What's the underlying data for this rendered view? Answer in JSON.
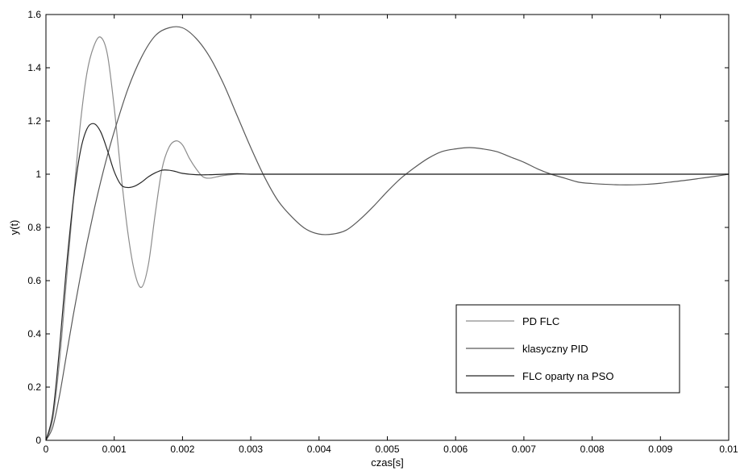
{
  "chart_data": {
    "type": "line",
    "title": "",
    "xlabel": "czas[s]",
    "ylabel": "y(t)",
    "xlim": [
      0,
      0.01
    ],
    "ylim": [
      0,
      1.6
    ],
    "xticks": [
      0,
      0.001,
      0.002,
      0.003,
      0.004,
      0.005,
      0.006,
      0.007,
      0.008,
      0.009,
      0.01
    ],
    "xtick_labels": [
      "0",
      "0.001",
      "0.002",
      "0.003",
      "0.004",
      "0.005",
      "0.006",
      "0.007",
      "0.008",
      "0.009",
      "0.01"
    ],
    "yticks": [
      0,
      0.2,
      0.4,
      0.6,
      0.8,
      1,
      1.2,
      1.4,
      1.6
    ],
    "ytick_labels": [
      "0",
      "0.2",
      "0.4",
      "0.6",
      "0.8",
      "1",
      "1.2",
      "1.4",
      "1.6"
    ],
    "grid": false,
    "legend_position": "lower-right",
    "series": [
      {
        "name": "PD FLC",
        "color": "#8c8c8c",
        "x": [
          0,
          0.0001,
          0.0002,
          0.0003,
          0.0004,
          0.0005,
          0.0006,
          0.0007,
          0.0008,
          0.0009,
          0.001,
          0.0011,
          0.0012,
          0.0013,
          0.0014,
          0.0015,
          0.0016,
          0.0017,
          0.0018,
          0.0019,
          0.002,
          0.0021,
          0.0022,
          0.0023,
          0.0024,
          0.0025,
          0.0026,
          0.0028,
          0.003,
          0.0035,
          0.004,
          0.005,
          0.006,
          0.007,
          0.008,
          0.009,
          0.01
        ],
        "y": [
          0,
          0.08,
          0.3,
          0.6,
          0.9,
          1.18,
          1.38,
          1.48,
          1.515,
          1.45,
          1.25,
          1.0,
          0.78,
          0.63,
          0.575,
          0.66,
          0.85,
          1.02,
          1.1,
          1.125,
          1.11,
          1.06,
          1.02,
          0.99,
          0.985,
          0.99,
          0.995,
          1.0,
          1.0,
          1.0,
          1.0,
          1.0,
          1.0,
          1.0,
          1.0,
          1.0,
          1.0
        ]
      },
      {
        "name": "klasyczny PID",
        "color": "#595959",
        "x": [
          0,
          0.0001,
          0.0002,
          0.0003,
          0.0004,
          0.0005,
          0.0006,
          0.0007,
          0.0008,
          0.0009,
          0.001,
          0.0012,
          0.0014,
          0.0016,
          0.0018,
          0.002,
          0.0022,
          0.0024,
          0.0026,
          0.0028,
          0.003,
          0.0032,
          0.0034,
          0.0036,
          0.0038,
          0.004,
          0.0042,
          0.0044,
          0.0046,
          0.0048,
          0.005,
          0.0052,
          0.0054,
          0.0056,
          0.0058,
          0.006,
          0.0062,
          0.0064,
          0.0066,
          0.0068,
          0.007,
          0.0072,
          0.0074,
          0.0076,
          0.0078,
          0.008,
          0.0082,
          0.0084,
          0.0086,
          0.0088,
          0.009,
          0.0092,
          0.0094,
          0.0096,
          0.0098,
          0.01
        ],
        "y": [
          0,
          0.05,
          0.17,
          0.32,
          0.47,
          0.61,
          0.74,
          0.86,
          0.97,
          1.07,
          1.16,
          1.32,
          1.44,
          1.52,
          1.55,
          1.55,
          1.51,
          1.44,
          1.34,
          1.22,
          1.1,
          0.99,
          0.9,
          0.84,
          0.795,
          0.775,
          0.775,
          0.79,
          0.83,
          0.88,
          0.935,
          0.985,
          1.025,
          1.06,
          1.085,
          1.095,
          1.1,
          1.095,
          1.085,
          1.065,
          1.045,
          1.02,
          1.0,
          0.985,
          0.97,
          0.965,
          0.962,
          0.96,
          0.96,
          0.962,
          0.966,
          0.972,
          0.978,
          0.985,
          0.992,
          1.0
        ]
      },
      {
        "name": "FLC oparty na PSO",
        "color": "#262626",
        "x": [
          0,
          0.0001,
          0.0002,
          0.0003,
          0.0004,
          0.0005,
          0.0006,
          0.0007,
          0.0008,
          0.0009,
          0.001,
          0.0011,
          0.0012,
          0.0013,
          0.0014,
          0.0015,
          0.0016,
          0.0017,
          0.0018,
          0.0019,
          0.002,
          0.0022,
          0.0024,
          0.0026,
          0.0028,
          0.003,
          0.0035,
          0.004,
          0.005,
          0.006,
          0.007,
          0.008,
          0.009,
          0.01
        ],
        "y": [
          0,
          0.1,
          0.35,
          0.65,
          0.9,
          1.08,
          1.17,
          1.19,
          1.16,
          1.09,
          1.01,
          0.96,
          0.95,
          0.955,
          0.97,
          0.99,
          1.005,
          1.015,
          1.015,
          1.01,
          1.003,
          0.998,
          0.998,
          1.0,
          1.002,
          1.0,
          1.0,
          1.0,
          1.0,
          1.0,
          1.0,
          1.0,
          1.0,
          1.0
        ]
      }
    ]
  }
}
